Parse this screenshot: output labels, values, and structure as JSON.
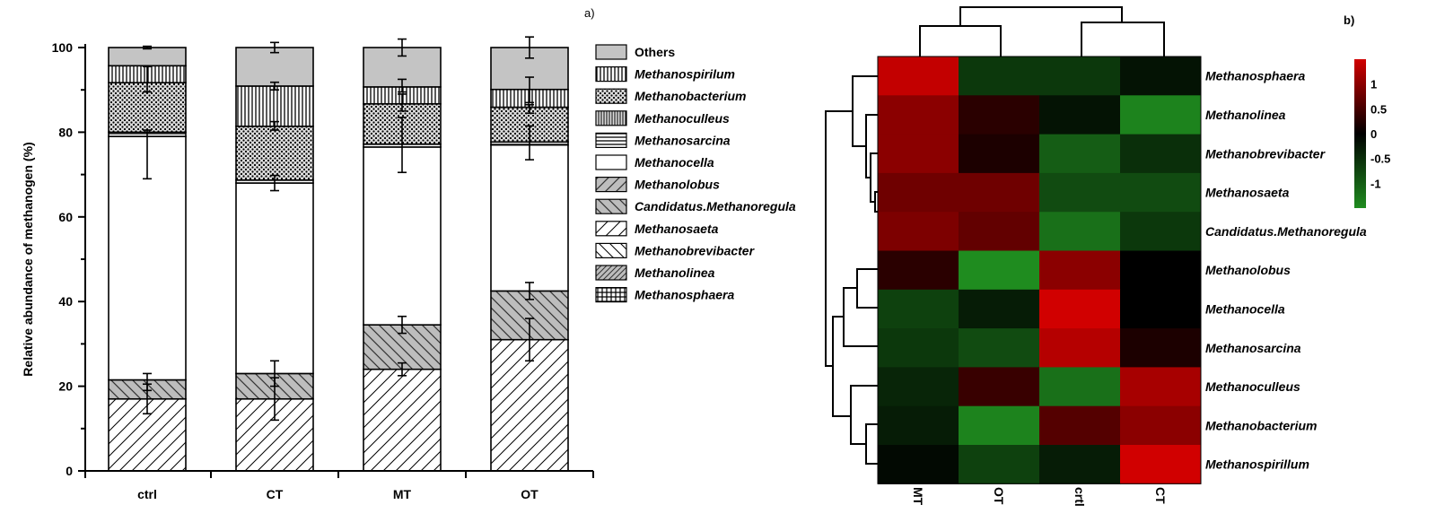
{
  "chart_data": [
    {
      "panel": "a)",
      "type": "bar",
      "stacked": true,
      "ylabel": "Relative abundance of methanogen (%)",
      "xlabel": "",
      "ylim": [
        0,
        100
      ],
      "yticks": [
        0,
        20,
        40,
        60,
        80,
        100
      ],
      "categories": [
        "ctrl",
        "CT",
        "MT",
        "OT"
      ],
      "legend_position": "right",
      "legend": [
        {
          "name": "Others",
          "italic": false,
          "pattern": "solid-gray"
        },
        {
          "name": "Methanospirilum",
          "italic": true,
          "pattern": "vertical"
        },
        {
          "name": "Methanobacterium",
          "italic": true,
          "pattern": "crosshatch"
        },
        {
          "name": "Methanoculleus",
          "italic": true,
          "pattern": "vertical-dense"
        },
        {
          "name": "Methanosarcina",
          "italic": true,
          "pattern": "horizontal"
        },
        {
          "name": "Methanocella",
          "italic": true,
          "pattern": "white"
        },
        {
          "name": "Methanolobus",
          "italic": true,
          "pattern": "gray-diag"
        },
        {
          "name": "Candidatus.Methanoregula",
          "italic": true,
          "pattern": "gray-backdiag"
        },
        {
          "name": "Methanosaeta",
          "italic": true,
          "pattern": "diag"
        },
        {
          "name": "Methanobrevibacter",
          "italic": true,
          "pattern": "backdiag"
        },
        {
          "name": "Methanolinea",
          "italic": true,
          "pattern": "dense-diag"
        },
        {
          "name": "Methanosphaera",
          "italic": true,
          "pattern": "grid"
        }
      ],
      "series": [
        {
          "name": "Methanosaeta",
          "pattern": "diag",
          "values": [
            17,
            17,
            24,
            31
          ]
        },
        {
          "name": "Candidatus.Methanoregula",
          "pattern": "gray-backdiag",
          "values": [
            4.5,
            6,
            10.5,
            11.5
          ]
        },
        {
          "name": "Methanocella",
          "pattern": "white",
          "values": [
            57.5,
            45,
            42,
            34.5
          ]
        },
        {
          "name": "Methanosarcina",
          "pattern": "horizontal",
          "values": [
            1,
            0.7,
            0.7,
            0.7
          ]
        },
        {
          "name": "Methanobacterium",
          "pattern": "crosshatch",
          "values": [
            11.7,
            12.7,
            9.5,
            8.2
          ]
        },
        {
          "name": "Methanospirilum",
          "pattern": "vertical",
          "values": [
            4,
            9.5,
            4,
            4.2
          ]
        },
        {
          "name": "Others",
          "pattern": "solid-gray",
          "values": [
            4.3,
            9.1,
            9.3,
            9.9
          ]
        }
      ],
      "error_bars": [
        {
          "category": "ctrl",
          "y": 17,
          "low": 13.5,
          "high": 20.5
        },
        {
          "category": "ctrl",
          "y": 21.5,
          "low": 19,
          "high": 23
        },
        {
          "category": "ctrl",
          "y": 79.5,
          "low": 69,
          "high": 80.5
        },
        {
          "category": "ctrl",
          "y": 91.5,
          "low": 89.5,
          "high": 95.5
        },
        {
          "category": "ctrl",
          "y": 100,
          "low": 99.7,
          "high": 100.3
        },
        {
          "category": "CT",
          "y": 17,
          "low": 12,
          "high": 22
        },
        {
          "category": "CT",
          "y": 23,
          "low": 20,
          "high": 26
        },
        {
          "category": "CT",
          "y": 68,
          "low": 66.2,
          "high": 69.8
        },
        {
          "category": "CT",
          "y": 81.5,
          "low": 80.5,
          "high": 82.5
        },
        {
          "category": "CT",
          "y": 91,
          "low": 90,
          "high": 91.8
        },
        {
          "category": "CT",
          "y": 100,
          "low": 98.8,
          "high": 101.2
        },
        {
          "category": "MT",
          "y": 24,
          "low": 22.5,
          "high": 25.5
        },
        {
          "category": "MT",
          "y": 34.5,
          "low": 32.5,
          "high": 36.5
        },
        {
          "category": "MT",
          "y": 77,
          "low": 70.5,
          "high": 83.5
        },
        {
          "category": "MT",
          "y": 87,
          "low": 85,
          "high": 89
        },
        {
          "category": "MT",
          "y": 91,
          "low": 89.5,
          "high": 92.5
        },
        {
          "category": "MT",
          "y": 100,
          "low": 98,
          "high": 102
        },
        {
          "category": "OT",
          "y": 31,
          "low": 26,
          "high": 36
        },
        {
          "category": "OT",
          "y": 42.5,
          "low": 40.5,
          "high": 44.5
        },
        {
          "category": "OT",
          "y": 77.5,
          "low": 73.5,
          "high": 81.5
        },
        {
          "category": "OT",
          "y": 85.5,
          "low": 84.5,
          "high": 86.5
        },
        {
          "category": "OT",
          "y": 90,
          "low": 87,
          "high": 93
        },
        {
          "category": "OT",
          "y": 100,
          "low": 97.5,
          "high": 102.5
        }
      ]
    },
    {
      "panel": "b)",
      "type": "heatmap",
      "rows": [
        "Methanosphaera",
        "Methanolinea",
        "Methanobrevibacter",
        "Methanosaeta",
        "Candidatus.Methanoregula",
        "Methanolobus",
        "Methanocella",
        "Methanosarcina",
        "Methanoculleus",
        "Methanobacterium",
        "Methanospirillum"
      ],
      "columns": [
        "MT",
        "OT",
        "crtl",
        "CT"
      ],
      "values": [
        [
          1.4,
          -0.6,
          -0.6,
          -0.2
        ],
        [
          1.0,
          0.3,
          -0.2,
          -1.4
        ],
        [
          1.0,
          0.2,
          -1.0,
          -0.5
        ],
        [
          0.8,
          0.8,
          -0.8,
          -0.8
        ],
        [
          0.9,
          0.7,
          -1.2,
          -0.6
        ],
        [
          0.3,
          -1.6,
          1.0,
          0.0
        ],
        [
          -0.7,
          -0.3,
          1.5,
          0.0
        ],
        [
          -0.6,
          -0.8,
          1.3,
          0.2
        ],
        [
          -0.4,
          0.4,
          -1.2,
          1.2
        ],
        [
          -0.3,
          -1.4,
          0.6,
          1.0
        ],
        [
          -0.1,
          -0.7,
          -0.3,
          1.6
        ]
      ],
      "colorbar": {
        "ticks": [
          1,
          0.5,
          0,
          -0.5,
          -1
        ],
        "tick_labels": [
          "1",
          "0.5",
          "0",
          "-0.5",
          "-1"
        ],
        "range": [
          -1.5,
          1.5
        ],
        "high_color": "#d10000",
        "mid_color": "#000000",
        "low_color": "#1f8c1f"
      }
    }
  ]
}
